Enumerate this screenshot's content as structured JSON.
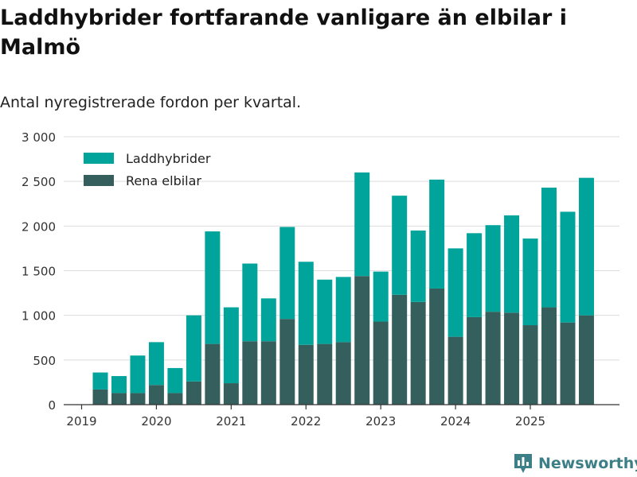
{
  "header": {
    "title": "Laddhybrider fortfarande vanligare än elbilar i Malmö",
    "subtitle": "Antal nyregistrerade fordon per kvartal."
  },
  "brand": {
    "name": "Newsworthy",
    "icon": "bar-chart-logo-icon"
  },
  "colors": {
    "laddhybrider": "#00a49a",
    "rena_elbilar": "#355f5c",
    "grid": "#dddddd",
    "axis": "#333333",
    "brand": "#3d7f86"
  },
  "chart_data": {
    "type": "bar",
    "stacked": true,
    "title": "Laddhybrider fortfarande vanligare än elbilar i Malmö",
    "subtitle": "Antal nyregistrerade fordon per kvartal.",
    "xlabel": "",
    "ylabel": "",
    "ylim": [
      0,
      3000
    ],
    "yticks": [
      0,
      500,
      1000,
      1500,
      2000,
      2500,
      3000
    ],
    "ytick_labels": [
      "0",
      "500",
      "1 000",
      "1 500",
      "2 000",
      "2 500",
      "3 000"
    ],
    "xtick_labels": [
      "2019",
      "2020",
      "2021",
      "2022",
      "2023",
      "2024",
      "2025"
    ],
    "categories": [
      "2019 Q2",
      "2019 Q3",
      "2019 Q4",
      "2020 Q1",
      "2020 Q2",
      "2020 Q3",
      "2020 Q4",
      "2021 Q1",
      "2021 Q2",
      "2021 Q3",
      "2021 Q4",
      "2022 Q1",
      "2022 Q2",
      "2022 Q3",
      "2022 Q4",
      "2023 Q1",
      "2023 Q2",
      "2023 Q3",
      "2023 Q4",
      "2024 Q1",
      "2024 Q2",
      "2024 Q3",
      "2024 Q4",
      "2025 Q1",
      "2025 Q2",
      "2025 Q3",
      "2025 Q4"
    ],
    "legend": {
      "position": "top-left"
    },
    "series": [
      {
        "name": "Rena elbilar",
        "color": "#355f5c",
        "values": [
          170,
          130,
          130,
          220,
          130,
          260,
          680,
          240,
          710,
          710,
          960,
          670,
          680,
          700,
          1440,
          930,
          1230,
          1150,
          1300,
          760,
          980,
          1040,
          1030,
          890,
          1090,
          920,
          1000
        ]
      },
      {
        "name": "Laddhybrider",
        "color": "#00a49a",
        "values": [
          190,
          190,
          420,
          480,
          280,
          740,
          1260,
          850,
          870,
          480,
          1030,
          930,
          720,
          730,
          1160,
          560,
          1110,
          800,
          1220,
          990,
          940,
          970,
          1090,
          970,
          1340,
          1240,
          1540
        ]
      }
    ]
  }
}
